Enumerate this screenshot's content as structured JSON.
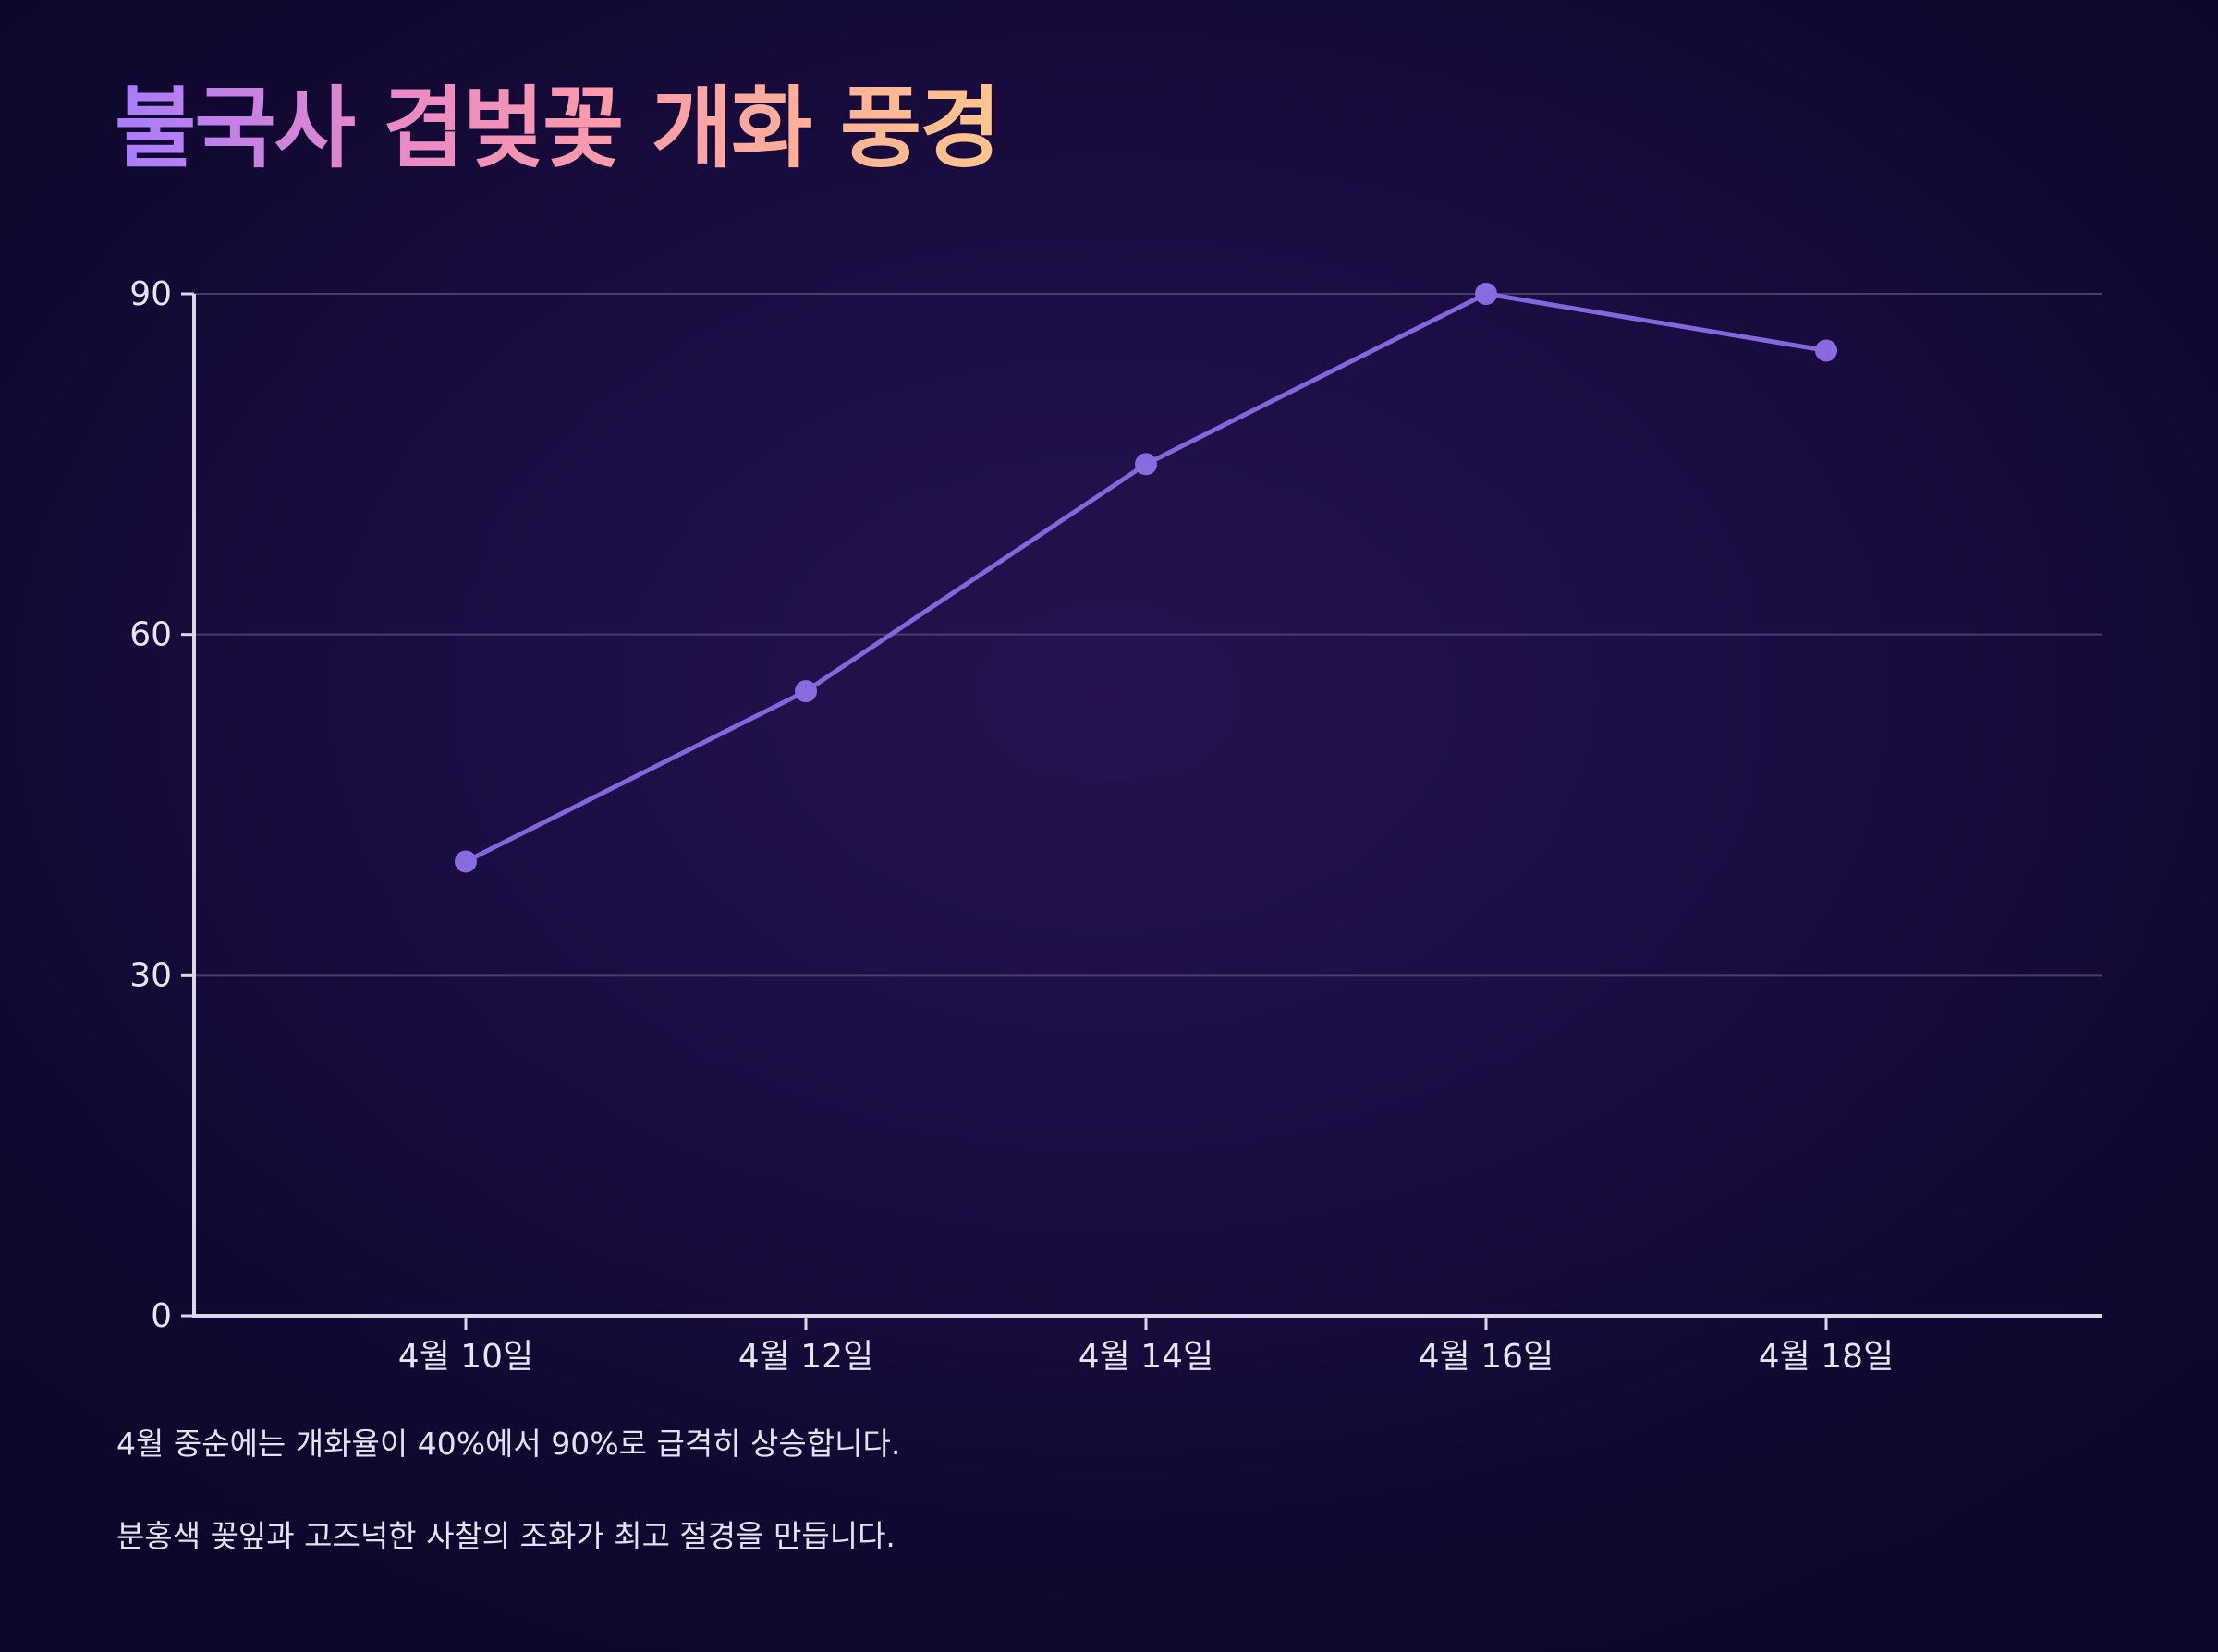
{
  "title": "불국사 겹벚꽃 개화 풍경",
  "notes": [
    "4월 중순에는 개화율이 40%에서 90%로 급격히 상승합니다.",
    "분홍색 꽃잎과 고즈넉한 사찰의 조화가 최고 절경을 만듭니다."
  ],
  "colors": {
    "line": "#8566dc",
    "marker": "#8a6ae0",
    "axis": "#ddd7ea",
    "grid": "#4a3d6e",
    "title_gradient": [
      "#a67cff",
      "#e888c7",
      "#ff9ea6",
      "#ffc58a"
    ]
  },
  "chart_data": {
    "type": "line",
    "title": "불국사 겹벚꽃 개화 풍경",
    "xlabel": "",
    "ylabel": "",
    "categories": [
      "4월 10일",
      "4월 12일",
      "4월 14일",
      "4월 16일",
      "4월 18일"
    ],
    "values": [
      40,
      55,
      75,
      90,
      85
    ],
    "ylim": [
      0,
      90
    ],
    "yticks": [
      0,
      30,
      60,
      90
    ],
    "grid": true,
    "legend": "none"
  }
}
